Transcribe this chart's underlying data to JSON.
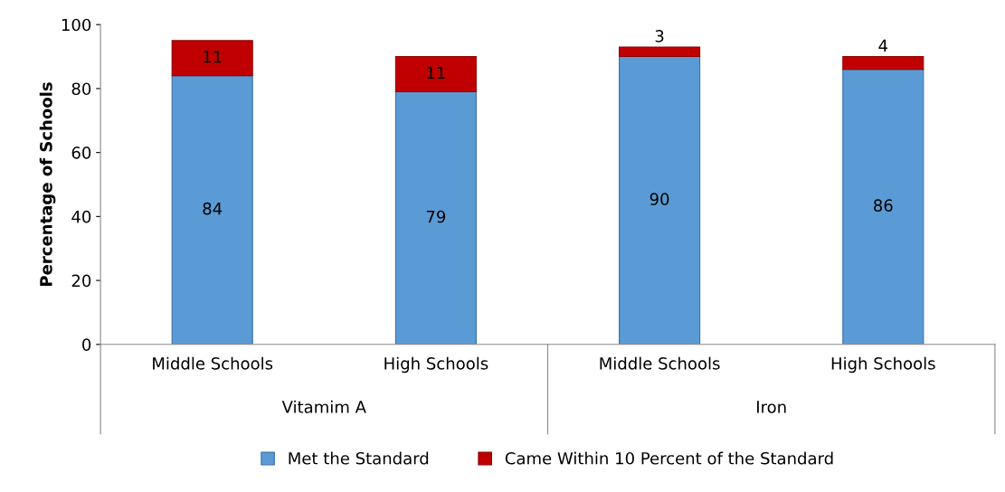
{
  "chart_data": {
    "type": "bar",
    "stacked": true,
    "ylabel": "Percentage of Schools",
    "categories": [
      "Middle Schools",
      "High Schools",
      "Middle Schools",
      "High Schools"
    ],
    "series": [
      {
        "name": "Met the Standard",
        "color": "#5b9bd5",
        "values": [
          84,
          79,
          90,
          86
        ]
      },
      {
        "name": "Came Within 10 Percent of the Standard",
        "color": "#c00000",
        "values": [
          11,
          11,
          3,
          4
        ]
      }
    ],
    "annotations": [
      "Vitamim A",
      "Iron"
    ],
    "ylim": [
      0,
      100
    ],
    "yticks": [
      0,
      20,
      40,
      60,
      80,
      100
    ],
    "grid": false,
    "legend": "bottom",
    "data_labels": true
  }
}
